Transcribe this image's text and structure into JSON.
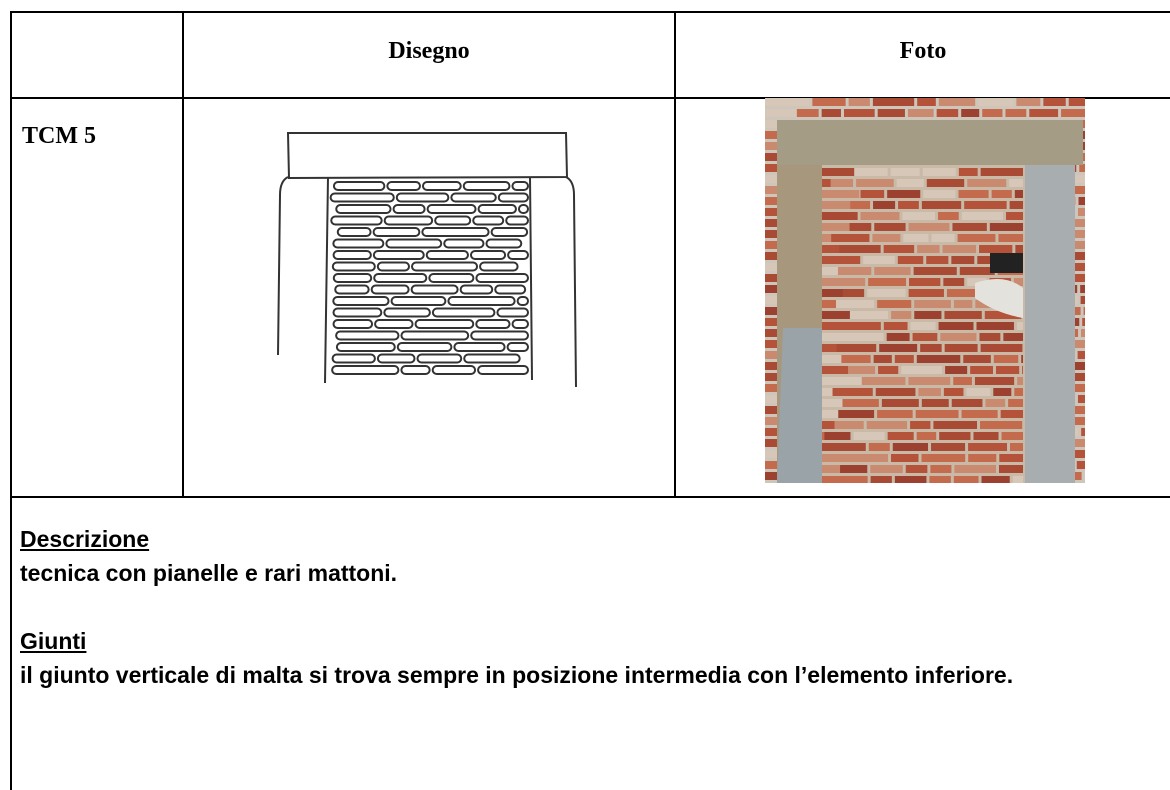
{
  "table": {
    "headers": [
      "Disegno",
      "Foto"
    ],
    "rows": [
      {
        "label": "TCM 5"
      }
    ]
  },
  "sections": [
    {
      "title": "Descrizione",
      "text": "tecnica con pianelle e rari mattoni."
    },
    {
      "title": "Giunti",
      "text": "il giunto verticale di malta si trova sempre in posizione intermedia con l’elemento inferiore."
    }
  ]
}
